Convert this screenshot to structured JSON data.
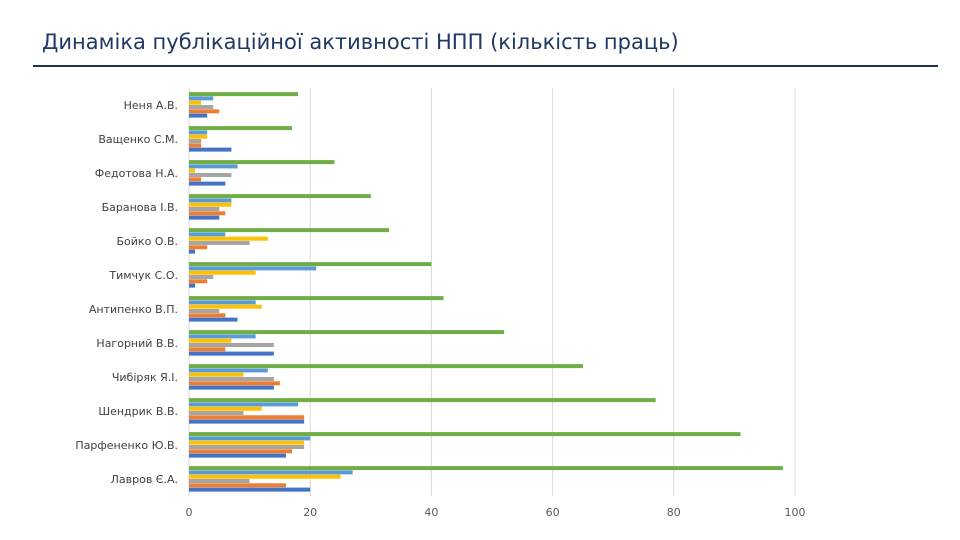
{
  "slide": {
    "title": "Динаміка публікаційної активності НПП (кількість праць)"
  },
  "chart_data": {
    "type": "bar",
    "orientation": "horizontal",
    "title": "",
    "xlabel": "",
    "ylabel": "",
    "xlim": [
      0,
      100
    ],
    "xticks": [
      0,
      20,
      40,
      60,
      80,
      100
    ],
    "grid": "vertical",
    "legend": "none",
    "categories": [
      "Лавров Є.А.",
      "Парфененко Ю.В.",
      "Шендрик В.В.",
      "Чибіряк Я.І.",
      "Нагорний В.В.",
      "Антипенко В.П.",
      "Тимчук С.О.",
      "Бойко О.В.",
      "Баранова І.В.",
      "Федотова Н.А.",
      "Ващенко С.М.",
      "Неня А.В."
    ],
    "series": [
      {
        "color": "#4472c4",
        "values": [
          20,
          16,
          19,
          14,
          14,
          8,
          1,
          1,
          5,
          6,
          7,
          3
        ]
      },
      {
        "color": "#ed7d31",
        "values": [
          16,
          17,
          19,
          15,
          6,
          6,
          3,
          3,
          6,
          2,
          2,
          5
        ]
      },
      {
        "color": "#a5a5a5",
        "values": [
          10,
          19,
          9,
          14,
          14,
          5,
          4,
          10,
          5,
          7,
          2,
          4
        ]
      },
      {
        "color": "#ffc000",
        "values": [
          25,
          19,
          12,
          9,
          7,
          12,
          11,
          13,
          7,
          1,
          3,
          2
        ]
      },
      {
        "color": "#5b9bd5",
        "values": [
          27,
          20,
          18,
          13,
          11,
          11,
          21,
          6,
          7,
          8,
          3,
          4
        ]
      },
      {
        "color": "#70ad47",
        "values": [
          98,
          91,
          77,
          65,
          52,
          42,
          40,
          33,
          30,
          24,
          17,
          18
        ]
      }
    ]
  }
}
